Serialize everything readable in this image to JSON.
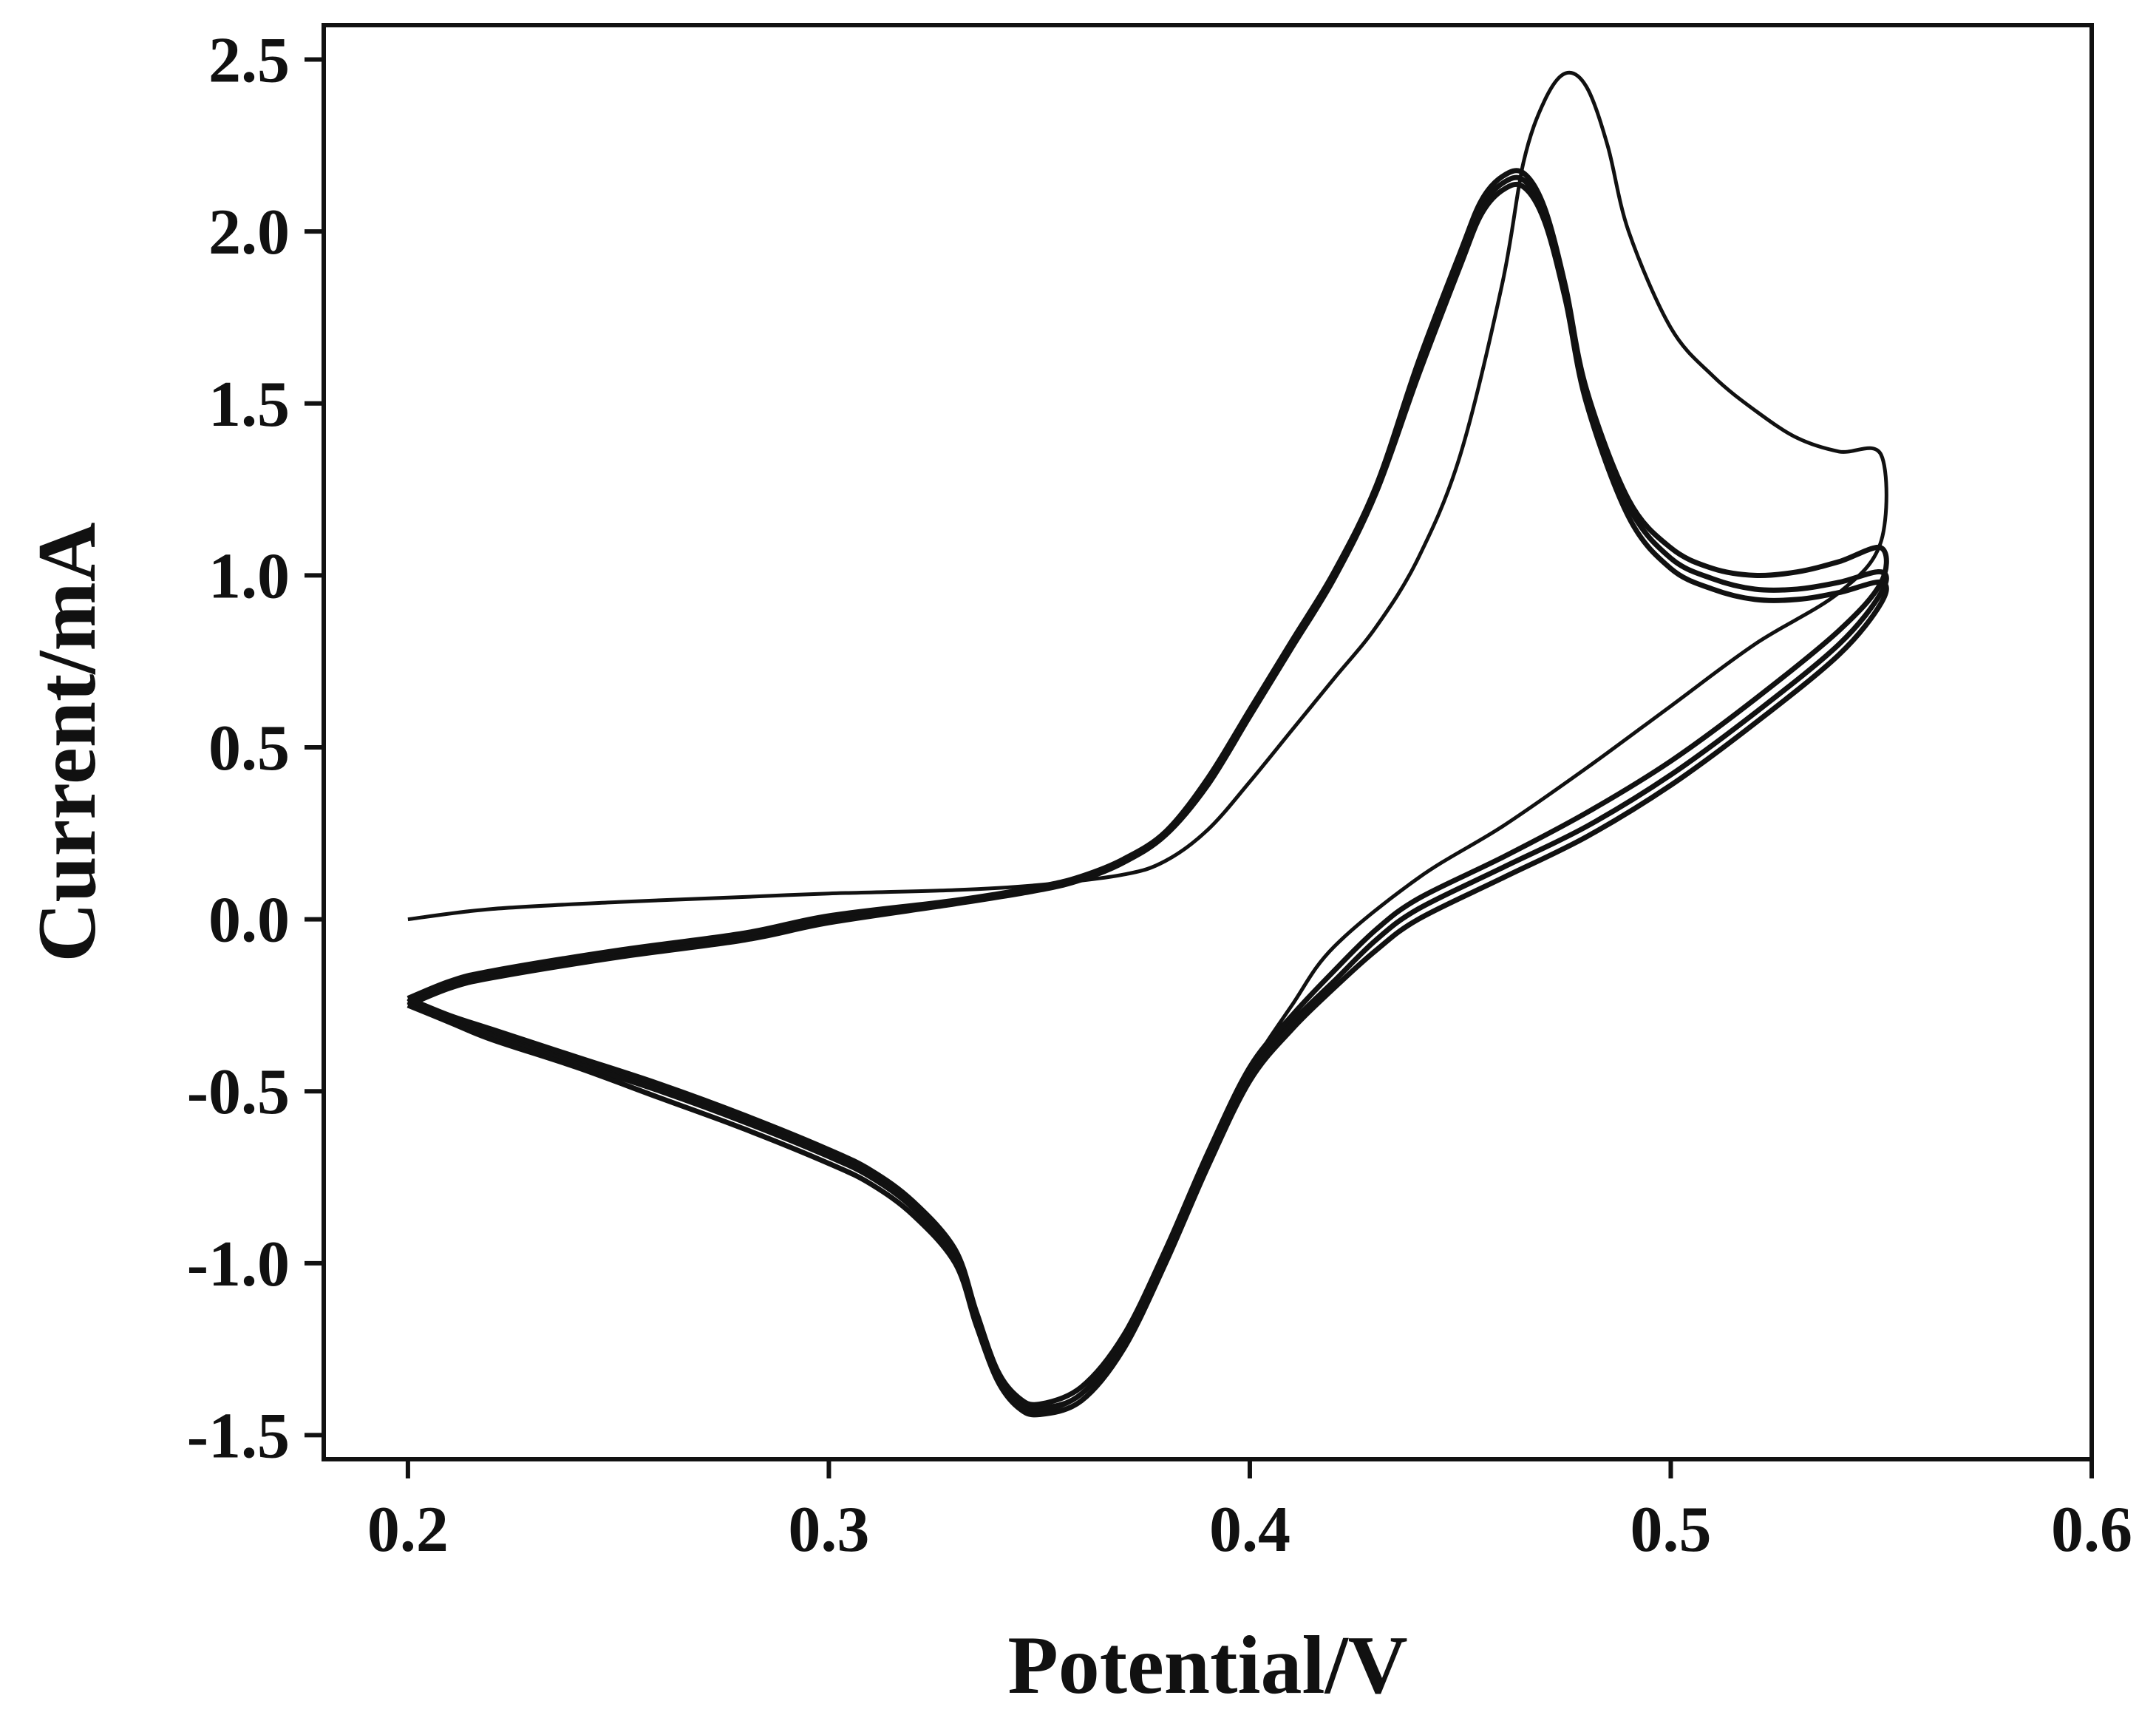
{
  "chart_data": {
    "type": "line",
    "title": "",
    "xlabel": "Potential/V",
    "ylabel": "Current/mA",
    "xlim": [
      0.18,
      0.6
    ],
    "ylim": [
      -1.57,
      2.6
    ],
    "x_ticks": [
      0.2,
      0.3,
      0.4,
      0.5,
      0.6
    ],
    "x_tick_labels": [
      "0.2",
      "0.3",
      "0.4",
      "0.5",
      "0.6"
    ],
    "y_ticks": [
      -1.5,
      -1.0,
      -0.5,
      0.0,
      0.5,
      1.0,
      1.5,
      2.0,
      2.5
    ],
    "y_tick_labels": [
      "-1.5",
      "-1.0",
      "-0.5",
      "0.0",
      "0.5",
      "1.0",
      "1.5",
      "2.0",
      "2.5"
    ],
    "grid": false,
    "legend": "none",
    "line_color": "#111111",
    "series": [
      {
        "points": [
          [
            0.2,
            0.0
          ],
          [
            0.22,
            0.03
          ],
          [
            0.25,
            0.05
          ],
          [
            0.28,
            0.065
          ],
          [
            0.3,
            0.075
          ],
          [
            0.33,
            0.085
          ],
          [
            0.35,
            0.1
          ],
          [
            0.37,
            0.13
          ],
          [
            0.38,
            0.17
          ],
          [
            0.39,
            0.26
          ],
          [
            0.4,
            0.4
          ],
          [
            0.41,
            0.55
          ],
          [
            0.42,
            0.7
          ],
          [
            0.43,
            0.85
          ],
          [
            0.44,
            1.05
          ],
          [
            0.45,
            1.35
          ],
          [
            0.46,
            1.85
          ],
          [
            0.465,
            2.2
          ],
          [
            0.47,
            2.38
          ],
          [
            0.475,
            2.46
          ],
          [
            0.48,
            2.42
          ],
          [
            0.485,
            2.25
          ],
          [
            0.49,
            2.0
          ],
          [
            0.5,
            1.72
          ],
          [
            0.51,
            1.58
          ],
          [
            0.52,
            1.48
          ],
          [
            0.53,
            1.4
          ],
          [
            0.54,
            1.36
          ],
          [
            0.55,
            1.35
          ],
          [
            0.55,
            1.1
          ],
          [
            0.54,
            0.95
          ],
          [
            0.52,
            0.8
          ],
          [
            0.5,
            0.62
          ],
          [
            0.48,
            0.44
          ],
          [
            0.46,
            0.27
          ],
          [
            0.44,
            0.12
          ],
          [
            0.42,
            -0.08
          ],
          [
            0.41,
            -0.25
          ],
          [
            0.4,
            -0.44
          ],
          [
            0.39,
            -0.7
          ],
          [
            0.38,
            -0.98
          ],
          [
            0.37,
            -1.23
          ],
          [
            0.36,
            -1.38
          ],
          [
            0.35,
            -1.42
          ],
          [
            0.345,
            -1.4
          ],
          [
            0.34,
            -1.32
          ],
          [
            0.335,
            -1.15
          ],
          [
            0.33,
            -0.97
          ],
          [
            0.32,
            -0.83
          ],
          [
            0.31,
            -0.74
          ],
          [
            0.3,
            -0.68
          ],
          [
            0.28,
            -0.58
          ],
          [
            0.26,
            -0.49
          ],
          [
            0.24,
            -0.41
          ],
          [
            0.22,
            -0.33
          ],
          [
            0.21,
            -0.29
          ],
          [
            0.2,
            -0.24
          ]
        ]
      },
      {
        "points": [
          [
            0.2,
            -0.24
          ],
          [
            0.21,
            -0.19
          ],
          [
            0.22,
            -0.16
          ],
          [
            0.25,
            -0.1
          ],
          [
            0.28,
            -0.05
          ],
          [
            0.3,
            0.0
          ],
          [
            0.33,
            0.05
          ],
          [
            0.35,
            0.09
          ],
          [
            0.36,
            0.12
          ],
          [
            0.37,
            0.17
          ],
          [
            0.38,
            0.25
          ],
          [
            0.39,
            0.4
          ],
          [
            0.4,
            0.6
          ],
          [
            0.41,
            0.8
          ],
          [
            0.42,
            1.0
          ],
          [
            0.43,
            1.25
          ],
          [
            0.44,
            1.6
          ],
          [
            0.45,
            1.92
          ],
          [
            0.455,
            2.07
          ],
          [
            0.46,
            2.14
          ],
          [
            0.465,
            2.15
          ],
          [
            0.47,
            2.05
          ],
          [
            0.475,
            1.82
          ],
          [
            0.48,
            1.52
          ],
          [
            0.49,
            1.2
          ],
          [
            0.5,
            1.05
          ],
          [
            0.51,
            0.99
          ],
          [
            0.52,
            0.96
          ],
          [
            0.53,
            0.96
          ],
          [
            0.54,
            0.98
          ],
          [
            0.55,
            1.01
          ],
          [
            0.55,
            0.95
          ],
          [
            0.54,
            0.8
          ],
          [
            0.52,
            0.6
          ],
          [
            0.5,
            0.42
          ],
          [
            0.48,
            0.27
          ],
          [
            0.46,
            0.15
          ],
          [
            0.44,
            0.03
          ],
          [
            0.43,
            -0.06
          ],
          [
            0.42,
            -0.18
          ],
          [
            0.41,
            -0.3
          ],
          [
            0.4,
            -0.45
          ],
          [
            0.39,
            -0.7
          ],
          [
            0.38,
            -0.98
          ],
          [
            0.37,
            -1.23
          ],
          [
            0.36,
            -1.38
          ],
          [
            0.35,
            -1.43
          ],
          [
            0.345,
            -1.41
          ],
          [
            0.34,
            -1.33
          ],
          [
            0.335,
            -1.16
          ],
          [
            0.33,
            -0.98
          ],
          [
            0.32,
            -0.84
          ],
          [
            0.31,
            -0.75
          ],
          [
            0.3,
            -0.69
          ],
          [
            0.28,
            -0.59
          ],
          [
            0.26,
            -0.5
          ],
          [
            0.24,
            -0.42
          ],
          [
            0.22,
            -0.34
          ],
          [
            0.21,
            -0.29
          ],
          [
            0.2,
            -0.24
          ]
        ]
      },
      {
        "points": [
          [
            0.2,
            -0.25
          ],
          [
            0.21,
            -0.2
          ],
          [
            0.22,
            -0.17
          ],
          [
            0.25,
            -0.11
          ],
          [
            0.28,
            -0.06
          ],
          [
            0.3,
            -0.01
          ],
          [
            0.33,
            0.045
          ],
          [
            0.35,
            0.085
          ],
          [
            0.36,
            0.115
          ],
          [
            0.37,
            0.165
          ],
          [
            0.38,
            0.245
          ],
          [
            0.39,
            0.39
          ],
          [
            0.4,
            0.59
          ],
          [
            0.41,
            0.79
          ],
          [
            0.42,
            0.99
          ],
          [
            0.43,
            1.24
          ],
          [
            0.44,
            1.58
          ],
          [
            0.45,
            1.9
          ],
          [
            0.455,
            2.05
          ],
          [
            0.46,
            2.12
          ],
          [
            0.465,
            2.13
          ],
          [
            0.47,
            2.03
          ],
          [
            0.475,
            1.8
          ],
          [
            0.48,
            1.5
          ],
          [
            0.49,
            1.17
          ],
          [
            0.5,
            1.02
          ],
          [
            0.51,
            0.96
          ],
          [
            0.52,
            0.93
          ],
          [
            0.53,
            0.93
          ],
          [
            0.54,
            0.95
          ],
          [
            0.55,
            0.98
          ],
          [
            0.55,
            0.92
          ],
          [
            0.54,
            0.77
          ],
          [
            0.52,
            0.57
          ],
          [
            0.5,
            0.39
          ],
          [
            0.48,
            0.24
          ],
          [
            0.46,
            0.12
          ],
          [
            0.44,
            0.0
          ],
          [
            0.43,
            -0.09
          ],
          [
            0.42,
            -0.2
          ],
          [
            0.41,
            -0.32
          ],
          [
            0.4,
            -0.47
          ],
          [
            0.39,
            -0.72
          ],
          [
            0.38,
            -1.0
          ],
          [
            0.37,
            -1.25
          ],
          [
            0.36,
            -1.4
          ],
          [
            0.35,
            -1.44
          ],
          [
            0.345,
            -1.42
          ],
          [
            0.34,
            -1.34
          ],
          [
            0.335,
            -1.18
          ],
          [
            0.33,
            -1.0
          ],
          [
            0.32,
            -0.86
          ],
          [
            0.31,
            -0.77
          ],
          [
            0.3,
            -0.71
          ],
          [
            0.28,
            -0.61
          ],
          [
            0.26,
            -0.52
          ],
          [
            0.24,
            -0.43
          ],
          [
            0.22,
            -0.35
          ],
          [
            0.21,
            -0.3
          ],
          [
            0.2,
            -0.25
          ]
        ]
      },
      {
        "points": [
          [
            0.2,
            -0.23
          ],
          [
            0.21,
            -0.18
          ],
          [
            0.22,
            -0.15
          ],
          [
            0.25,
            -0.09
          ],
          [
            0.28,
            -0.04
          ],
          [
            0.3,
            0.01
          ],
          [
            0.33,
            0.055
          ],
          [
            0.35,
            0.095
          ],
          [
            0.36,
            0.125
          ],
          [
            0.37,
            0.175
          ],
          [
            0.38,
            0.255
          ],
          [
            0.39,
            0.41
          ],
          [
            0.4,
            0.61
          ],
          [
            0.41,
            0.81
          ],
          [
            0.42,
            1.01
          ],
          [
            0.43,
            1.26
          ],
          [
            0.44,
            1.62
          ],
          [
            0.45,
            1.94
          ],
          [
            0.455,
            2.09
          ],
          [
            0.46,
            2.16
          ],
          [
            0.465,
            2.17
          ],
          [
            0.47,
            2.07
          ],
          [
            0.475,
            1.84
          ],
          [
            0.48,
            1.54
          ],
          [
            0.49,
            1.22
          ],
          [
            0.5,
            1.08
          ],
          [
            0.51,
            1.02
          ],
          [
            0.52,
            1.0
          ],
          [
            0.53,
            1.01
          ],
          [
            0.54,
            1.04
          ],
          [
            0.55,
            1.08
          ],
          [
            0.55,
            0.98
          ],
          [
            0.54,
            0.84
          ],
          [
            0.52,
            0.64
          ],
          [
            0.5,
            0.46
          ],
          [
            0.48,
            0.31
          ],
          [
            0.46,
            0.18
          ],
          [
            0.44,
            0.06
          ],
          [
            0.43,
            -0.03
          ],
          [
            0.42,
            -0.15
          ],
          [
            0.41,
            -0.28
          ],
          [
            0.4,
            -0.43
          ],
          [
            0.39,
            -0.68
          ],
          [
            0.38,
            -0.96
          ],
          [
            0.37,
            -1.21
          ],
          [
            0.36,
            -1.36
          ],
          [
            0.35,
            -1.41
          ],
          [
            0.345,
            -1.39
          ],
          [
            0.34,
            -1.31
          ],
          [
            0.335,
            -1.14
          ],
          [
            0.33,
            -0.96
          ],
          [
            0.32,
            -0.82
          ],
          [
            0.31,
            -0.73
          ],
          [
            0.3,
            -0.67
          ],
          [
            0.28,
            -0.57
          ],
          [
            0.26,
            -0.48
          ],
          [
            0.24,
            -0.4
          ],
          [
            0.22,
            -0.32
          ],
          [
            0.21,
            -0.28
          ],
          [
            0.2,
            -0.23
          ]
        ]
      }
    ]
  }
}
